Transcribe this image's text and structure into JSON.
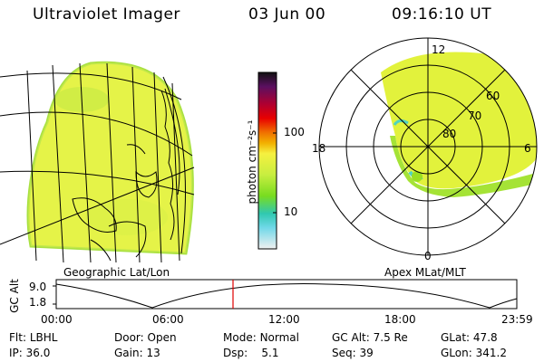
{
  "header": {
    "title": "Ultraviolet Imager",
    "date": "03 Jun 00",
    "time": "09:16:10 UT"
  },
  "colorbar": {
    "unit_label": "photon cm⁻²s⁻¹",
    "tick_labels": [
      "100",
      "10"
    ]
  },
  "polar_plot": {
    "mlt_labels": {
      "top": "12",
      "left": "18",
      "right": "6",
      "bottom": "0"
    },
    "lat_labels": [
      "60",
      "70",
      "80"
    ]
  },
  "panel_labels": {
    "left": "Geographic Lat/Lon",
    "right": "Apex MLat/MLT"
  },
  "altitude_plot": {
    "ylabel": "GC Alt",
    "y_ticks": [
      "9.0",
      "1.8"
    ],
    "x_ticks": [
      "00:00",
      "06:00",
      "12:00",
      "18:00",
      "23:59"
    ]
  },
  "info": {
    "row1": [
      {
        "label": "Flt:",
        "value": "LBHL"
      },
      {
        "label": "Door:",
        "value": "Open"
      },
      {
        "label": "Mode:",
        "value": "Normal"
      },
      {
        "label": "GC Alt:",
        "value": "7.5 Re"
      },
      {
        "label": "GLat:",
        "value": "47.8"
      }
    ],
    "row2": [
      {
        "label": "IP:",
        "value": "36.0"
      },
      {
        "label": "Gain:",
        "value": "13"
      },
      {
        "label": "Dsp:",
        "value": "5.1"
      },
      {
        "label": "Seq:",
        "value": "39"
      },
      {
        "label": "GLon:",
        "value": "341.2"
      }
    ]
  },
  "colors": {
    "emission_main": "#e2f23c",
    "emission_green": "#9be020",
    "emission_cyan": "#4fd4c0",
    "marker_red": "#e00000"
  }
}
